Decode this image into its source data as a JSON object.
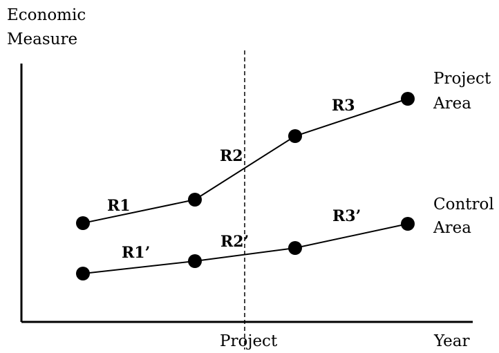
{
  "labels": {
    "y_axis_line1": "Economic",
    "y_axis_line2": "Measure",
    "x_axis_project": "Project",
    "x_axis_year": "Year",
    "series_project_line1": "Project",
    "series_project_line2": "Area",
    "series_control_line1": "Control",
    "series_control_line2": "Area"
  },
  "segments": {
    "project": [
      "R1",
      "R2",
      "R3"
    ],
    "control": [
      "R1’",
      "R2’",
      "R3’"
    ]
  },
  "colors": {
    "ink": "#000000",
    "background": "#ffffff"
  }
}
